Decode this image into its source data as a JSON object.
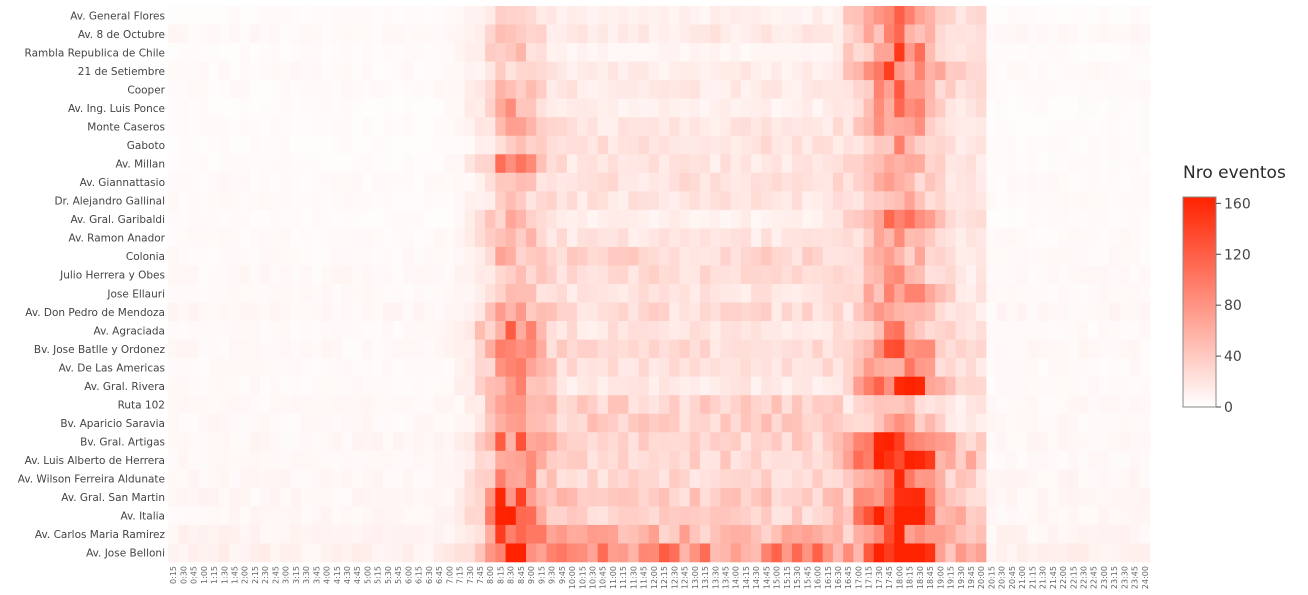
{
  "chart_data": {
    "type": "heatmap",
    "colorbar": {
      "title": "Nro eventos",
      "ticks": [
        "0",
        "40",
        "80",
        "120",
        "160"
      ],
      "range": [
        0,
        165
      ],
      "color_low": "#ffffff",
      "color_high": "#ff2200"
    },
    "y_categories": [
      "Av. General Flores",
      "Av. 8 de Octubre",
      "Rambla Republica de Chile",
      "21 de Setiembre",
      "Cooper",
      "Av. Ing. Luis Ponce",
      "Monte Caseros",
      "Gaboto",
      "Av. Millan",
      "Av. Giannattasio",
      "Dr. Alejandro Gallinal",
      "Av. Gral. Garibaldi",
      "Av. Ramon Anador",
      "Colonia",
      "Julio Herrera y Obes",
      "Jose Ellauri",
      "Av. Don Pedro de Mendoza",
      "Av. Agraciada",
      "Bv. Jose Batlle y Ordonez",
      "Av. De Las Americas",
      "Av. Gral. Rivera",
      "Ruta 102",
      "Bv. Aparicio Saravia",
      "Bv. Gral. Artigas",
      "Av. Luis Alberto de Herrera",
      "Av. Wilson Ferreira Aldunate",
      "Av. Gral. San Martin",
      "Av. Italia",
      "Av. Carlos Maria Ramirez",
      "Av. Jose Belloni"
    ],
    "x_categories": [
      "0:15",
      "0:30",
      "0:45",
      "1:00",
      "1:15",
      "1:30",
      "1:45",
      "2:00",
      "2:15",
      "2:30",
      "2:45",
      "3:00",
      "3:15",
      "3:30",
      "3:45",
      "4:00",
      "4:15",
      "4:30",
      "4:45",
      "5:00",
      "5:15",
      "5:30",
      "5:45",
      "6:00",
      "6:15",
      "6:30",
      "6:45",
      "7:00",
      "7:15",
      "7:30",
      "7:45",
      "8:00",
      "8:15",
      "8:30",
      "8:45",
      "9:00",
      "9:15",
      "9:30",
      "9:45",
      "10:00",
      "10:15",
      "10:30",
      "10:45",
      "11:00",
      "11:15",
      "11:30",
      "11:45",
      "12:00",
      "12:15",
      "12:30",
      "12:45",
      "13:00",
      "13:15",
      "13:30",
      "13:45",
      "14:00",
      "14:15",
      "14:30",
      "14:45",
      "15:00",
      "15:15",
      "15:30",
      "15:45",
      "16:00",
      "16:15",
      "16:30",
      "16:45",
      "17:00",
      "17:15",
      "17:30",
      "17:45",
      "18:00",
      "18:15",
      "18:30",
      "18:45",
      "19:00",
      "19:15",
      "19:30",
      "19:45",
      "20:00",
      "20:15",
      "20:30",
      "20:45",
      "21:00",
      "21:15",
      "21:30",
      "21:45",
      "22:00",
      "22:15",
      "22:30",
      "22:45",
      "23:00",
      "23:15",
      "23:30",
      "23:45",
      "24:00"
    ],
    "z_peaks": [
      {
        "morning": 20,
        "midday": 8,
        "evening": 90,
        "base": 3
      },
      {
        "morning": 25,
        "midday": 12,
        "evening": 60,
        "base": 5
      },
      {
        "morning": 45,
        "midday": 4,
        "evening": 80,
        "base": 3
      },
      {
        "morning": 15,
        "midday": 10,
        "evening": 85,
        "base": 4
      },
      {
        "morning": 35,
        "midday": 12,
        "evening": 70,
        "base": 4
      },
      {
        "morning": 50,
        "midday": 8,
        "evening": 65,
        "base": 3
      },
      {
        "morning": 45,
        "midday": 15,
        "evening": 60,
        "base": 3
      },
      {
        "morning": 15,
        "midday": 18,
        "evening": 55,
        "base": 3
      },
      {
        "morning": 70,
        "midday": 15,
        "evening": 60,
        "base": 3
      },
      {
        "morning": 20,
        "midday": 18,
        "evening": 45,
        "base": 4
      },
      {
        "morning": 20,
        "midday": 15,
        "evening": 40,
        "base": 4
      },
      {
        "morning": 45,
        "midday": 8,
        "evening": 75,
        "base": 3
      },
      {
        "morning": 40,
        "midday": 14,
        "evening": 50,
        "base": 4
      },
      {
        "morning": 25,
        "midday": 25,
        "evening": 45,
        "base": 4
      },
      {
        "morning": 25,
        "midday": 20,
        "evening": 45,
        "base": 5
      },
      {
        "morning": 30,
        "midday": 15,
        "evening": 70,
        "base": 4
      },
      {
        "morning": 40,
        "midday": 20,
        "evening": 50,
        "base": 6
      },
      {
        "morning": 80,
        "midday": 15,
        "evening": 60,
        "base": 4
      },
      {
        "morning": 60,
        "midday": 20,
        "evening": 80,
        "base": 5
      },
      {
        "morning": 55,
        "midday": 18,
        "evening": 70,
        "base": 4
      },
      {
        "morning": 60,
        "midday": 12,
        "evening": 120,
        "base": 4
      },
      {
        "morning": 45,
        "midday": 28,
        "evening": 40,
        "base": 5
      },
      {
        "morning": 40,
        "midday": 30,
        "evening": 50,
        "base": 5
      },
      {
        "morning": 65,
        "midday": 25,
        "evening": 120,
        "base": 6
      },
      {
        "morning": 50,
        "midday": 25,
        "evening": 160,
        "base": 5
      },
      {
        "morning": 55,
        "midday": 22,
        "evening": 90,
        "base": 6
      },
      {
        "morning": 85,
        "midday": 30,
        "evening": 110,
        "base": 6
      },
      {
        "morning": 110,
        "midday": 25,
        "evening": 150,
        "base": 6
      },
      {
        "morning": 55,
        "midday": 45,
        "evening": 100,
        "base": 8
      },
      {
        "morning": 85,
        "midday": 75,
        "evening": 160,
        "base": 10
      }
    ]
  }
}
